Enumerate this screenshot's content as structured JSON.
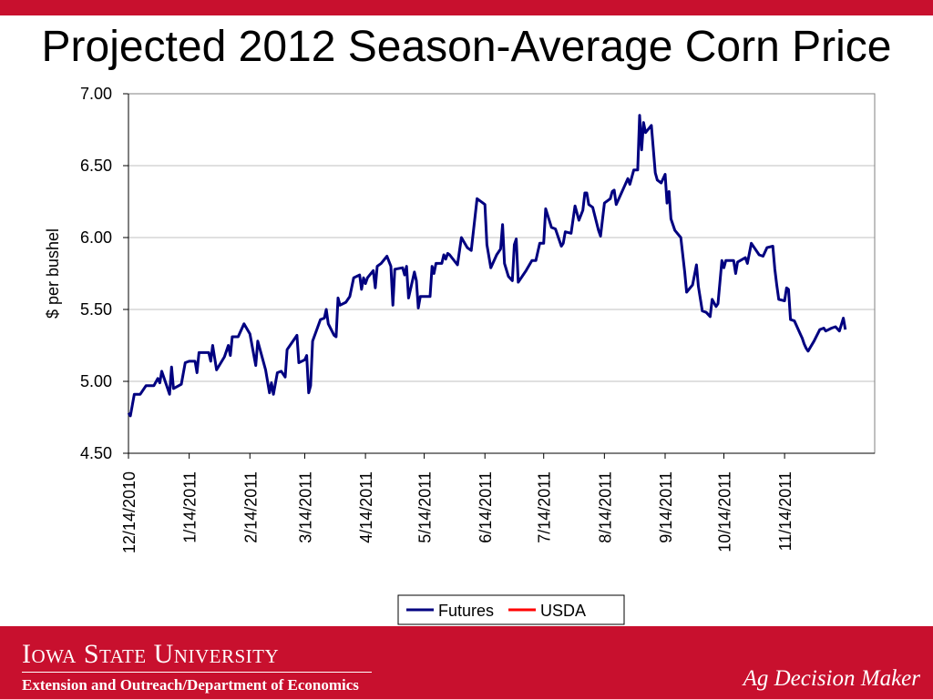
{
  "slide": {
    "title": "Projected 2012 Season-Average Corn Price",
    "footer": {
      "university": "Iowa State University",
      "department": "Extension and Outreach/Department of Economics",
      "tagline": "Ag Decision Maker"
    },
    "colors": {
      "brand_red": "#c8102e",
      "futures_line": "#000080",
      "usda_line": "#ff0000"
    }
  },
  "chart_data": {
    "type": "line",
    "title": "",
    "xlabel": "",
    "ylabel": "$ per bushel",
    "ylim": [
      4.5,
      7.0
    ],
    "yticks": [
      "4.50",
      "5.00",
      "5.50",
      "6.00",
      "6.50",
      "7.00"
    ],
    "x_range": [
      "12/14/2010",
      "12/30/2011"
    ],
    "x_ticks": [
      "12/14/2010",
      "1/14/2011",
      "2/14/2011",
      "3/14/2011",
      "4/14/2011",
      "5/14/2011",
      "6/14/2011",
      "7/14/2011",
      "8/14/2011",
      "9/14/2011",
      "10/14/2011",
      "11/14/2011"
    ],
    "grid": "horizontal",
    "legend": "bottom-center",
    "series": [
      {
        "name": "Futures",
        "color": "#000080",
        "points": [
          [
            "12/14/2010",
            4.78
          ],
          [
            "12/15/2010",
            4.76
          ],
          [
            "12/17/2010",
            4.91
          ],
          [
            "12/20/2010",
            4.91
          ],
          [
            "12/23/2010",
            4.97
          ],
          [
            "12/27/2010",
            4.97
          ],
          [
            "12/29/2010",
            5.02
          ],
          [
            "12/30/2010",
            4.99
          ],
          [
            "12/31/2010",
            5.07
          ],
          [
            "1/3/2011",
            4.95
          ],
          [
            "1/4/2011",
            4.91
          ],
          [
            "1/5/2011",
            5.1
          ],
          [
            "1/6/2011",
            4.95
          ],
          [
            "1/10/2011",
            4.98
          ],
          [
            "1/12/2011",
            5.13
          ],
          [
            "1/14/2011",
            5.14
          ],
          [
            "1/17/2011",
            5.14
          ],
          [
            "1/18/2011",
            5.06
          ],
          [
            "1/19/2011",
            5.2
          ],
          [
            "1/24/2011",
            5.2
          ],
          [
            "1/25/2011",
            5.14
          ],
          [
            "1/26/2011",
            5.25
          ],
          [
            "1/28/2011",
            5.08
          ],
          [
            "2/1/2011",
            5.17
          ],
          [
            "2/3/2011",
            5.25
          ],
          [
            "2/4/2011",
            5.18
          ],
          [
            "2/5/2011",
            5.31
          ],
          [
            "2/8/2011",
            5.31
          ],
          [
            "2/11/2011",
            5.4
          ],
          [
            "2/14/2011",
            5.33
          ],
          [
            "2/17/2011",
            5.11
          ],
          [
            "2/18/2011",
            5.28
          ],
          [
            "2/22/2011",
            5.08
          ],
          [
            "2/24/2011",
            4.92
          ],
          [
            "2/25/2011",
            4.99
          ],
          [
            "2/26/2011",
            4.91
          ],
          [
            "2/28/2011",
            5.06
          ],
          [
            "3/2/2011",
            5.07
          ],
          [
            "3/4/2011",
            5.03
          ],
          [
            "3/5/2011",
            5.22
          ],
          [
            "3/9/2011",
            5.3
          ],
          [
            "3/10/2011",
            5.32
          ],
          [
            "3/11/2011",
            5.13
          ],
          [
            "3/14/2011",
            5.15
          ],
          [
            "3/15/2011",
            5.18
          ],
          [
            "3/16/2011",
            4.92
          ],
          [
            "3/17/2011",
            4.97
          ],
          [
            "3/18/2011",
            5.28
          ],
          [
            "3/22/2011",
            5.43
          ],
          [
            "3/24/2011",
            5.44
          ],
          [
            "3/25/2011",
            5.5
          ],
          [
            "3/26/2011",
            5.4
          ],
          [
            "3/29/2011",
            5.32
          ],
          [
            "3/30/2011",
            5.31
          ],
          [
            "3/31/2011",
            5.58
          ],
          [
            "4/1/2011",
            5.53
          ],
          [
            "4/4/2011",
            5.55
          ],
          [
            "4/6/2011",
            5.59
          ],
          [
            "4/8/2011",
            5.72
          ],
          [
            "4/11/2011",
            5.74
          ],
          [
            "4/12/2011",
            5.64
          ],
          [
            "4/13/2011",
            5.72
          ],
          [
            "4/14/2011",
            5.68
          ],
          [
            "4/15/2011",
            5.72
          ],
          [
            "4/18/2011",
            5.77
          ],
          [
            "4/19/2011",
            5.65
          ],
          [
            "4/20/2011",
            5.8
          ],
          [
            "4/22/2011",
            5.82
          ],
          [
            "4/25/2011",
            5.87
          ],
          [
            "4/27/2011",
            5.8
          ],
          [
            "4/28/2011",
            5.53
          ],
          [
            "4/29/2011",
            5.78
          ],
          [
            "5/3/2011",
            5.79
          ],
          [
            "5/4/2011",
            5.74
          ],
          [
            "5/5/2011",
            5.8
          ],
          [
            "5/6/2011",
            5.58
          ],
          [
            "5/9/2011",
            5.76
          ],
          [
            "5/10/2011",
            5.7
          ],
          [
            "5/11/2011",
            5.51
          ],
          [
            "5/12/2011",
            5.59
          ],
          [
            "5/17/2011",
            5.59
          ],
          [
            "5/18/2011",
            5.8
          ],
          [
            "5/19/2011",
            5.75
          ],
          [
            "5/20/2011",
            5.82
          ],
          [
            "5/23/2011",
            5.82
          ],
          [
            "5/24/2011",
            5.88
          ],
          [
            "5/25/2011",
            5.85
          ],
          [
            "5/26/2011",
            5.89
          ],
          [
            "5/27/2011",
            5.88
          ],
          [
            "5/31/2011",
            5.81
          ],
          [
            "6/2/2011",
            6.0
          ],
          [
            "6/5/2011",
            5.93
          ],
          [
            "6/7/2011",
            5.91
          ],
          [
            "6/10/2011",
            6.27
          ],
          [
            "6/13/2011",
            6.24
          ],
          [
            "6/14/2011",
            6.23
          ],
          [
            "6/15/2011",
            5.95
          ],
          [
            "6/17/2011",
            5.79
          ],
          [
            "6/20/2011",
            5.88
          ],
          [
            "6/22/2011",
            5.92
          ],
          [
            "6/23/2011",
            6.09
          ],
          [
            "6/24/2011",
            5.82
          ],
          [
            "6/26/2011",
            5.73
          ],
          [
            "6/28/2011",
            5.7
          ],
          [
            "6/29/2011",
            5.95
          ],
          [
            "6/30/2011",
            5.99
          ],
          [
            "7/1/2011",
            5.69
          ],
          [
            "7/5/2011",
            5.77
          ],
          [
            "7/8/2011",
            5.84
          ],
          [
            "7/10/2011",
            5.84
          ],
          [
            "7/12/2011",
            5.96
          ],
          [
            "7/14/2011",
            5.96
          ],
          [
            "7/15/2011",
            6.2
          ],
          [
            "7/18/2011",
            6.07
          ],
          [
            "7/20/2011",
            6.06
          ],
          [
            "7/23/2011",
            5.94
          ],
          [
            "7/24/2011",
            5.96
          ],
          [
            "7/25/2011",
            6.04
          ],
          [
            "7/28/2011",
            6.03
          ],
          [
            "7/30/2011",
            6.22
          ],
          [
            "8/1/2011",
            6.12
          ],
          [
            "8/3/2011",
            6.19
          ],
          [
            "8/4/2011",
            6.31
          ],
          [
            "8/5/2011",
            6.31
          ],
          [
            "8/6/2011",
            6.23
          ],
          [
            "8/8/2011",
            6.21
          ],
          [
            "8/11/2011",
            6.05
          ],
          [
            "8/12/2011",
            6.01
          ],
          [
            "8/14/2011",
            6.24
          ],
          [
            "8/17/2011",
            6.27
          ],
          [
            "8/18/2011",
            6.32
          ],
          [
            "8/19/2011",
            6.33
          ],
          [
            "8/20/2011",
            6.23
          ],
          [
            "8/22/2011",
            6.29
          ],
          [
            "8/26/2011",
            6.41
          ],
          [
            "8/27/2011",
            6.37
          ],
          [
            "8/29/2011",
            6.47
          ],
          [
            "8/31/2011",
            6.47
          ],
          [
            "9/1/2011",
            6.85
          ],
          [
            "9/2/2011",
            6.61
          ],
          [
            "9/3/2011",
            6.8
          ],
          [
            "9/4/2011",
            6.73
          ],
          [
            "9/7/2011",
            6.78
          ],
          [
            "9/9/2011",
            6.45
          ],
          [
            "9/10/2011",
            6.4
          ],
          [
            "9/12/2011",
            6.38
          ],
          [
            "9/14/2011",
            6.44
          ],
          [
            "9/15/2011",
            6.24
          ],
          [
            "9/16/2011",
            6.32
          ],
          [
            "9/17/2011",
            6.13
          ],
          [
            "9/19/2011",
            6.05
          ],
          [
            "9/22/2011",
            6.0
          ],
          [
            "9/24/2011",
            5.76
          ],
          [
            "9/25/2011",
            5.62
          ],
          [
            "9/28/2011",
            5.67
          ],
          [
            "9/30/2011",
            5.81
          ],
          [
            "10/1/2011",
            5.66
          ],
          [
            "10/3/2011",
            5.49
          ],
          [
            "10/5/2011",
            5.48
          ],
          [
            "10/7/2011",
            5.45
          ],
          [
            "10/8/2011",
            5.57
          ],
          [
            "10/10/2011",
            5.52
          ],
          [
            "10/11/2011",
            5.54
          ],
          [
            "10/13/2011",
            5.84
          ],
          [
            "10/14/2011",
            5.79
          ],
          [
            "10/15/2011",
            5.84
          ],
          [
            "10/19/2011",
            5.84
          ],
          [
            "10/20/2011",
            5.75
          ],
          [
            "10/21/2011",
            5.83
          ],
          [
            "10/25/2011",
            5.86
          ],
          [
            "10/26/2011",
            5.82
          ],
          [
            "10/28/2011",
            5.96
          ],
          [
            "11/1/2011",
            5.88
          ],
          [
            "11/3/2011",
            5.87
          ],
          [
            "11/5/2011",
            5.93
          ],
          [
            "11/8/2011",
            5.94
          ],
          [
            "11/9/2011",
            5.78
          ],
          [
            "11/10/2011",
            5.67
          ],
          [
            "11/11/2011",
            5.57
          ],
          [
            "11/14/2011",
            5.56
          ],
          [
            "11/15/2011",
            5.65
          ],
          [
            "11/16/2011",
            5.64
          ],
          [
            "11/17/2011",
            5.43
          ],
          [
            "11/19/2011",
            5.42
          ],
          [
            "11/22/2011",
            5.33
          ],
          [
            "11/23/2011",
            5.3
          ],
          [
            "11/24/2011",
            5.26
          ],
          [
            "11/25/2011",
            5.23
          ],
          [
            "11/26/2011",
            5.21
          ],
          [
            "11/29/2011",
            5.28
          ],
          [
            "12/2/2011",
            5.36
          ],
          [
            "12/4/2011",
            5.37
          ],
          [
            "12/5/2011",
            5.35
          ],
          [
            "12/8/2011",
            5.37
          ],
          [
            "12/10/2011",
            5.38
          ],
          [
            "12/12/2011",
            5.35
          ],
          [
            "12/14/2011",
            5.44
          ],
          [
            "12/15/2011",
            5.36
          ]
        ]
      },
      {
        "name": "USDA",
        "color": "#ff0000",
        "points": []
      }
    ]
  }
}
